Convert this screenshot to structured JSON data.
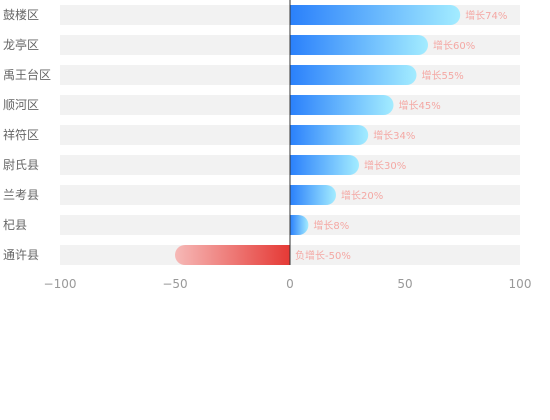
{
  "chart_data": {
    "type": "bar",
    "orientation": "horizontal",
    "categories": [
      "鼓楼区",
      "龙亭区",
      "禹王台区",
      "顺河区",
      "祥符区",
      "尉氏县",
      "兰考县",
      "杞县",
      "通许县"
    ],
    "values": [
      74,
      60,
      55,
      45,
      34,
      30,
      20,
      8,
      -50
    ],
    "data_labels": [
      "增长74%",
      "增长60%",
      "增长55%",
      "增长45%",
      "增长34%",
      "增长30%",
      "增长20%",
      "增长8%",
      "负增长-50%"
    ],
    "xlim": [
      -100,
      100
    ],
    "x_ticks": [
      "−100",
      "−50",
      "0",
      "50",
      "100"
    ],
    "title": "",
    "xlabel": "",
    "ylabel": "",
    "grid": false,
    "colors": {
      "positive_start": "#2a80fb",
      "positive_end": "#a3ecff",
      "negative_start": "#e53935",
      "negative_end": "#f6b9b7",
      "background_bar": "#f2f2f2",
      "data_label": "#f4a8a4",
      "category_text": "#666666",
      "tick_text": "#999999",
      "zero_line": "#333333"
    }
  }
}
